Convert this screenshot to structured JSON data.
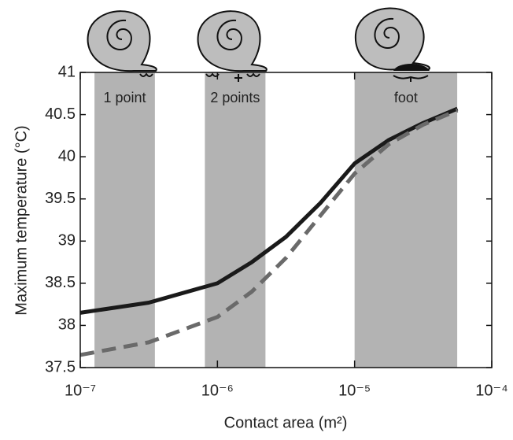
{
  "chart_data": {
    "type": "line",
    "xlabel": "Contact area (m²)",
    "ylabel": "Maximum temperature (°C)",
    "xscale": "log",
    "x": [
      1e-07,
      3.16e-07,
      1e-06,
      1.78e-06,
      3.16e-06,
      5.62e-06,
      1e-05,
      1.78e-05,
      3.16e-05,
      5.62e-05
    ],
    "series": [
      {
        "color": "#1a1a1a",
        "style": "solid",
        "values": [
          38.15,
          38.27,
          38.5,
          38.75,
          39.05,
          39.45,
          39.92,
          40.2,
          40.4,
          40.57
        ]
      },
      {
        "color": "#6a6a6a",
        "style": "dashed",
        "values": [
          37.65,
          37.8,
          38.1,
          38.4,
          38.8,
          39.3,
          39.8,
          40.15,
          40.38,
          40.55
        ]
      }
    ],
    "regions": [
      {
        "label": "1 point",
        "range": [
          1.27e-07,
          3.5e-07
        ]
      },
      {
        "label": "2 points",
        "range": [
          8.1e-07,
          2.24e-06
        ]
      },
      {
        "label": "foot",
        "range": [
          1e-05,
          5.6e-05
        ]
      }
    ],
    "region_color": "#b3b3b3",
    "xlim": [
      1e-07,
      0.0001
    ],
    "xticks": [
      {
        "value": 1e-07,
        "label": "10⁻⁷"
      },
      {
        "value": 1e-06,
        "label": "10⁻⁶"
      },
      {
        "value": 1e-05,
        "label": "10⁻⁵"
      },
      {
        "value": 0.0001,
        "label": "10⁻⁴"
      }
    ],
    "ylim": [
      37.5,
      41
    ],
    "yticks": [
      37.5,
      38,
      38.5,
      39,
      39.5,
      40,
      40.5,
      41
    ]
  }
}
